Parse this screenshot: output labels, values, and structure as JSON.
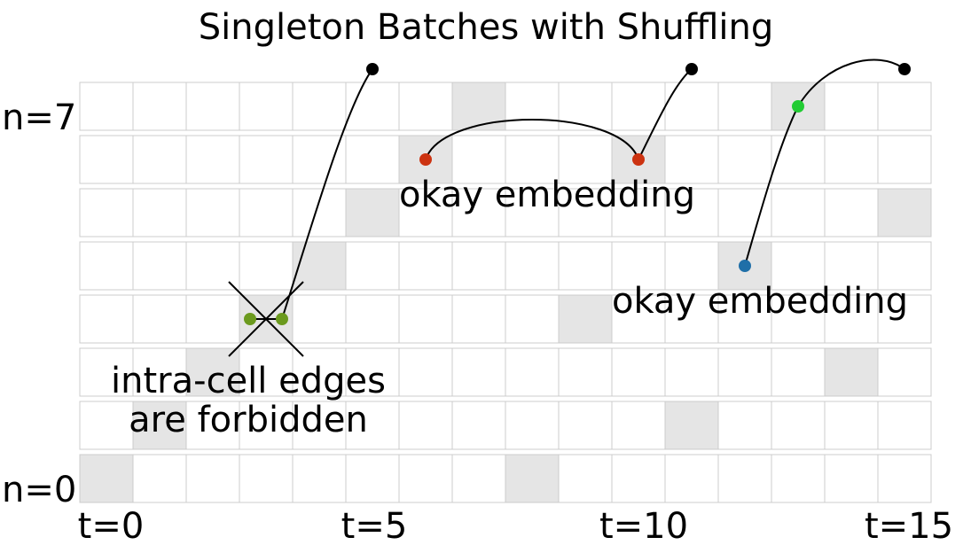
{
  "title": "Singleton Batches with Shuffling",
  "row_labels": {
    "top": "n=7",
    "bottom": "n=0"
  },
  "x_labels": [
    "t=0",
    "t=5",
    "t=10",
    "t=15"
  ],
  "annotations": {
    "okay_embedding_1": "okay embedding",
    "okay_embedding_2": "okay embedding",
    "forbidden_line1": "intra-cell edges",
    "forbidden_line2": "are forbidden"
  },
  "grid": {
    "rows": 8,
    "cols": 16,
    "shaded_cells": [
      {
        "n": 7,
        "t": 7
      },
      {
        "n": 7,
        "t": 13
      },
      {
        "n": 6,
        "t": 6
      },
      {
        "n": 6,
        "t": 10
      },
      {
        "n": 5,
        "t": 5
      },
      {
        "n": 5,
        "t": 15
      },
      {
        "n": 4,
        "t": 4
      },
      {
        "n": 4,
        "t": 12
      },
      {
        "n": 3,
        "t": 3
      },
      {
        "n": 3,
        "t": 9
      },
      {
        "n": 2,
        "t": 2
      },
      {
        "n": 2,
        "t": 14
      },
      {
        "n": 1,
        "t": 1
      },
      {
        "n": 1,
        "t": 11
      },
      {
        "n": 0,
        "t": 0
      },
      {
        "n": 0,
        "t": 8
      }
    ]
  },
  "colors": {
    "shade": "#e5e5e5",
    "grid_line": "#cccccc",
    "black": "#000000",
    "red": "#cc3311",
    "green_bright": "#22cc33",
    "blue": "#1f6fa8",
    "olive": "#6b9a1e"
  }
}
